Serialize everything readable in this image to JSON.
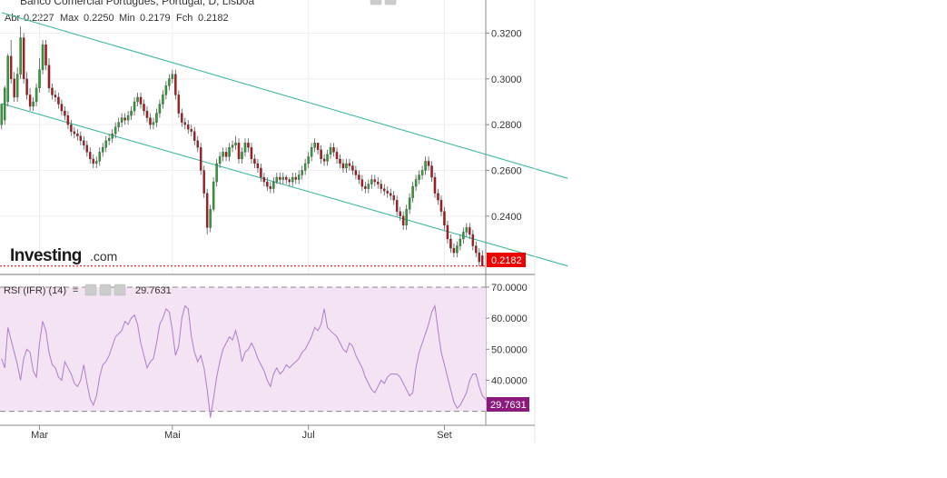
{
  "header": {
    "title": "Banco Comercial Português, Portugal, D, Lisboa",
    "ohlc": [
      {
        "label": "Abr",
        "value": "0.2227"
      },
      {
        "label": "Max",
        "value": "0.2250"
      },
      {
        "label": "Min",
        "value": "0.2179"
      },
      {
        "label": "Fch",
        "value": "0.2182"
      }
    ]
  },
  "logo": {
    "brand": "Investing",
    "suffix": ".com"
  },
  "colors": {
    "up": "#2e9e35",
    "down": "#b0171c",
    "channel": "#3fb8a0",
    "rsi_line": "#b07ccf",
    "rsi_band": "#f3e3f3",
    "price_badge": "#ee0000",
    "rsi_badge": "#8a1a7c"
  },
  "price_badge": "0.2182",
  "rsi": {
    "label": "RSI (IFR) (14)",
    "sep": "=",
    "value": "29.7631",
    "upper": 70,
    "lower": 30,
    "ticks": [
      "70.0000",
      "60.0000",
      "50.0000",
      "40.0000"
    ]
  },
  "chart_data": [
    {
      "type": "candlestick",
      "title": "Banco Comercial Português, Portugal, D, Lisboa",
      "xlabel": "",
      "ylabel": "",
      "ylim": [
        0.2145,
        0.3345
      ],
      "x_ticks": [
        {
          "label": "Mar",
          "index": 12
        },
        {
          "label": "Mai",
          "index": 54
        },
        {
          "label": "Jul",
          "index": 97
        },
        {
          "label": "Set",
          "index": 140
        }
      ],
      "y_ticks": [
        {
          "value": 0.32,
          "label": "0.3200"
        },
        {
          "value": 0.3,
          "label": "0.3000"
        },
        {
          "value": 0.28,
          "label": "0.2800"
        },
        {
          "value": 0.26,
          "label": "0.2600"
        },
        {
          "value": 0.24,
          "label": "0.2400"
        }
      ],
      "last_close": 0.2182,
      "channel": {
        "upper": [
          [
            0,
            0.329
          ],
          [
            179,
            0.2565
          ]
        ],
        "lower": [
          [
            0,
            0.2892
          ],
          [
            179,
            0.2182
          ]
        ]
      },
      "close": [
        0.289,
        0.296,
        0.31,
        0.3,
        0.292,
        0.302,
        0.318,
        0.3,
        0.293,
        0.288,
        0.29,
        0.296,
        0.304,
        0.315,
        0.306,
        0.296,
        0.293,
        0.292,
        0.289,
        0.286,
        0.284,
        0.28,
        0.277,
        0.276,
        0.275,
        0.273,
        0.271,
        0.268,
        0.265,
        0.263,
        0.264,
        0.268,
        0.27,
        0.273,
        0.274,
        0.276,
        0.279,
        0.281,
        0.283,
        0.282,
        0.284,
        0.286,
        0.29,
        0.292,
        0.289,
        0.286,
        0.283,
        0.28,
        0.281,
        0.285,
        0.289,
        0.293,
        0.297,
        0.3,
        0.302,
        0.293,
        0.285,
        0.281,
        0.28,
        0.278,
        0.277,
        0.273,
        0.27,
        0.26,
        0.25,
        0.235,
        0.243,
        0.255,
        0.263,
        0.266,
        0.268,
        0.266,
        0.27,
        0.271,
        0.272,
        0.265,
        0.268,
        0.272,
        0.27,
        0.265,
        0.263,
        0.261,
        0.257,
        0.255,
        0.253,
        0.252,
        0.255,
        0.257,
        0.256,
        0.257,
        0.256,
        0.255,
        0.257,
        0.256,
        0.258,
        0.26,
        0.263,
        0.266,
        0.27,
        0.272,
        0.269,
        0.265,
        0.264,
        0.267,
        0.27,
        0.268,
        0.265,
        0.263,
        0.261,
        0.263,
        0.262,
        0.26,
        0.258,
        0.256,
        0.253,
        0.252,
        0.254,
        0.256,
        0.255,
        0.254,
        0.252,
        0.251,
        0.25,
        0.249,
        0.247,
        0.242,
        0.24,
        0.236,
        0.243,
        0.248,
        0.253,
        0.256,
        0.258,
        0.26,
        0.264,
        0.262,
        0.257,
        0.25,
        0.247,
        0.242,
        0.236,
        0.23,
        0.226,
        0.224,
        0.227,
        0.23,
        0.233,
        0.235,
        0.232,
        0.227,
        0.224,
        0.22,
        0.2182
      ],
      "series": [
        {
          "open": [
            0.28,
            0.282,
            0.29,
            0.31,
            0.3,
            0.292,
            0.302,
            0.318,
            0.3,
            0.293,
            0.288,
            0.29,
            0.296,
            0.304,
            0.315,
            0.306,
            0.296,
            0.293,
            0.292,
            0.289,
            0.286,
            0.284,
            0.28,
            0.277,
            0.276,
            0.275,
            0.273,
            0.271,
            0.268,
            0.265,
            0.263,
            0.264,
            0.268,
            0.27,
            0.273,
            0.274,
            0.276,
            0.279,
            0.281,
            0.283,
            0.282,
            0.284,
            0.286,
            0.29,
            0.292,
            0.289,
            0.286,
            0.283,
            0.28,
            0.281,
            0.285,
            0.289,
            0.293,
            0.297,
            0.3,
            0.302,
            0.293,
            0.285,
            0.281,
            0.28,
            0.278,
            0.277,
            0.273,
            0.27,
            0.26,
            0.25,
            0.235,
            0.243,
            0.255,
            0.263,
            0.266,
            0.268,
            0.266,
            0.27,
            0.271,
            0.272,
            0.265,
            0.268,
            0.272,
            0.27,
            0.265,
            0.263,
            0.261,
            0.257,
            0.255,
            0.253,
            0.252,
            0.255,
            0.257,
            0.256,
            0.257,
            0.256,
            0.255,
            0.257,
            0.256,
            0.258,
            0.26,
            0.263,
            0.266,
            0.27,
            0.272,
            0.269,
            0.265,
            0.264,
            0.267,
            0.27,
            0.268,
            0.265,
            0.263,
            0.261,
            0.263,
            0.262,
            0.26,
            0.258,
            0.256,
            0.253,
            0.252,
            0.254,
            0.256,
            0.255,
            0.254,
            0.252,
            0.251,
            0.25,
            0.249,
            0.247,
            0.242,
            0.24,
            0.236,
            0.243,
            0.248,
            0.253,
            0.256,
            0.258,
            0.26,
            0.264,
            0.262,
            0.257,
            0.25,
            0.247,
            0.242,
            0.236,
            0.23,
            0.226,
            0.224,
            0.227,
            0.23,
            0.233,
            0.235,
            0.232,
            0.227,
            0.224,
            0.2227
          ],
          "high": [
            0.286,
            0.297,
            0.311,
            0.317,
            0.303,
            0.305,
            0.323,
            0.32,
            0.303,
            0.296,
            0.292,
            0.298,
            0.309,
            0.317,
            0.317,
            0.309,
            0.298,
            0.295,
            0.294,
            0.291,
            0.288,
            0.286,
            0.282,
            0.279,
            0.278,
            0.277,
            0.275,
            0.273,
            0.27,
            0.267,
            0.266,
            0.27,
            0.272,
            0.275,
            0.276,
            0.278,
            0.281,
            0.283,
            0.285,
            0.285,
            0.286,
            0.288,
            0.292,
            0.294,
            0.294,
            0.291,
            0.288,
            0.285,
            0.283,
            0.287,
            0.291,
            0.295,
            0.299,
            0.302,
            0.304,
            0.304,
            0.295,
            0.287,
            0.283,
            0.282,
            0.28,
            0.279,
            0.275,
            0.272,
            0.262,
            0.252,
            0.245,
            0.257,
            0.265,
            0.268,
            0.27,
            0.27,
            0.272,
            0.273,
            0.275,
            0.274,
            0.27,
            0.274,
            0.274,
            0.272,
            0.267,
            0.265,
            0.263,
            0.259,
            0.257,
            0.255,
            0.257,
            0.259,
            0.259,
            0.259,
            0.258,
            0.257,
            0.259,
            0.259,
            0.26,
            0.262,
            0.265,
            0.268,
            0.272,
            0.274,
            0.272,
            0.271,
            0.267,
            0.269,
            0.272,
            0.272,
            0.27,
            0.267,
            0.265,
            0.265,
            0.265,
            0.264,
            0.262,
            0.26,
            0.258,
            0.255,
            0.256,
            0.258,
            0.258,
            0.257,
            0.256,
            0.254,
            0.253,
            0.252,
            0.251,
            0.249,
            0.244,
            0.242,
            0.245,
            0.25,
            0.255,
            0.258,
            0.26,
            0.262,
            0.266,
            0.266,
            0.264,
            0.259,
            0.252,
            0.249,
            0.244,
            0.238,
            0.232,
            0.228,
            0.229,
            0.232,
            0.235,
            0.237,
            0.237,
            0.234,
            0.229,
            0.226,
            0.225
          ],
          "low": [
            0.278,
            0.28,
            0.288,
            0.298,
            0.29,
            0.29,
            0.3,
            0.298,
            0.291,
            0.286,
            0.286,
            0.288,
            0.294,
            0.302,
            0.304,
            0.294,
            0.291,
            0.29,
            0.287,
            0.284,
            0.282,
            0.278,
            0.275,
            0.274,
            0.273,
            0.271,
            0.269,
            0.266,
            0.263,
            0.261,
            0.261,
            0.262,
            0.266,
            0.268,
            0.271,
            0.272,
            0.274,
            0.277,
            0.279,
            0.28,
            0.28,
            0.282,
            0.284,
            0.288,
            0.287,
            0.284,
            0.281,
            0.278,
            0.278,
            0.279,
            0.283,
            0.287,
            0.291,
            0.295,
            0.298,
            0.291,
            0.283,
            0.279,
            0.278,
            0.276,
            0.275,
            0.271,
            0.268,
            0.258,
            0.248,
            0.232,
            0.233,
            0.242,
            0.253,
            0.261,
            0.264,
            0.264,
            0.264,
            0.268,
            0.269,
            0.263,
            0.263,
            0.266,
            0.268,
            0.263,
            0.261,
            0.259,
            0.255,
            0.253,
            0.251,
            0.25,
            0.25,
            0.254,
            0.254,
            0.254,
            0.254,
            0.253,
            0.253,
            0.254,
            0.254,
            0.256,
            0.258,
            0.261,
            0.264,
            0.268,
            0.267,
            0.263,
            0.262,
            0.262,
            0.265,
            0.266,
            0.263,
            0.261,
            0.259,
            0.259,
            0.26,
            0.258,
            0.256,
            0.254,
            0.251,
            0.25,
            0.25,
            0.252,
            0.253,
            0.252,
            0.25,
            0.249,
            0.248,
            0.247,
            0.245,
            0.24,
            0.238,
            0.234,
            0.234,
            0.241,
            0.246,
            0.251,
            0.254,
            0.256,
            0.258,
            0.26,
            0.255,
            0.248,
            0.245,
            0.24,
            0.234,
            0.228,
            0.224,
            0.222,
            0.222,
            0.225,
            0.228,
            0.231,
            0.23,
            0.225,
            0.222,
            0.218,
            0.2179
          ]
        }
      ]
    },
    {
      "type": "line",
      "title": "RSI (IFR) (14)",
      "xlabel": "",
      "ylabel": "",
      "ylim": [
        25.5,
        73.8
      ],
      "lines": [
        70,
        30
      ],
      "series": [
        {
          "name": "RSI (IFR) (14)",
          "values": [
            47,
            44,
            57,
            53,
            49,
            45,
            40,
            47,
            50,
            49,
            43,
            41,
            52,
            59,
            56,
            49,
            45,
            44,
            41,
            40,
            46,
            44,
            42,
            39,
            38,
            40,
            45,
            39,
            34,
            32,
            35,
            41,
            45,
            46,
            48,
            51,
            54,
            55,
            56,
            59,
            58,
            60,
            61,
            58,
            52,
            48,
            44,
            46,
            47,
            52,
            58,
            60,
            63,
            62,
            56,
            48,
            51,
            60,
            64,
            63,
            54,
            49,
            46,
            48,
            44,
            37,
            28,
            34,
            41,
            46,
            50,
            52,
            54,
            53,
            56,
            52,
            46,
            49,
            50,
            52,
            50,
            47,
            45,
            43,
            40,
            38,
            42,
            44,
            42,
            43,
            45,
            44,
            45,
            46,
            47,
            49,
            50,
            52,
            54,
            57,
            56,
            58,
            63,
            57,
            56,
            55,
            54,
            52,
            50,
            49,
            52,
            51,
            48,
            46,
            44,
            41,
            39,
            37,
            36,
            38,
            40,
            39,
            41,
            42,
            42,
            42,
            41,
            39,
            37,
            35,
            36,
            44,
            49,
            52,
            55,
            58,
            62,
            64,
            56,
            49,
            45,
            41,
            37,
            33,
            31,
            32,
            34,
            36,
            40,
            42,
            42,
            38,
            35,
            34,
            33,
            30
          ]
        }
      ]
    }
  ]
}
